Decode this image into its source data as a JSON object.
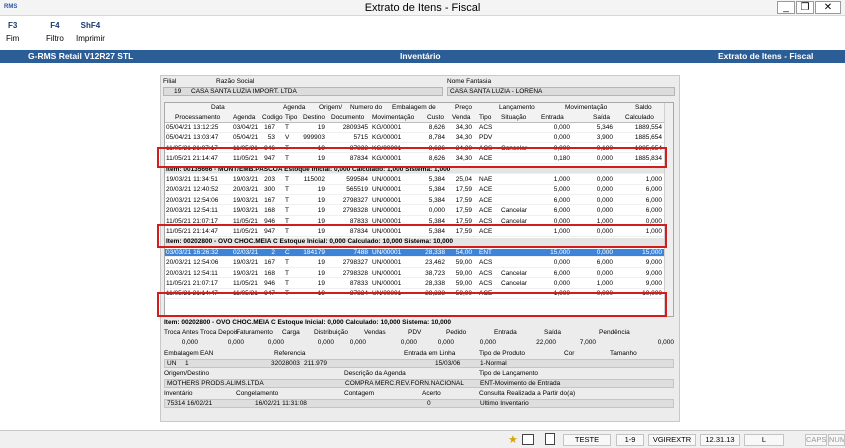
{
  "window": {
    "title": "Extrato de Itens - Fiscal",
    "logo": "RMS"
  },
  "toolbar": [
    {
      "key": "F3",
      "label": "Fim"
    },
    {
      "key": "F4",
      "label": "Filtro"
    },
    {
      "key": "ShF4",
      "label": "Imprimir"
    }
  ],
  "banner": {
    "left": "G-RMS Retail V12R27 STL",
    "center": "Inventário",
    "right": "Extrato de Itens - Fiscal"
  },
  "filial": {
    "label_filial": "Filial",
    "label_razao": "Razão Social",
    "code": "19",
    "razao": "CASA SANTA LUZIA IMPORT. LTDA",
    "label_fantasia": "Nome Fantasia",
    "fantasia": "CASA SANTA LUZIA - LORENA"
  },
  "grid": {
    "group_headers": [
      "Data",
      "Agenda",
      "Origem/",
      "Numero do",
      "Embalagem de",
      "Preço",
      "Lançamento",
      "Movimentação",
      "Saldo"
    ],
    "headers": [
      "Processamento",
      "Agenda",
      "Codigo",
      "Tipo",
      "Destino",
      "Documento",
      "Movimentação",
      "Custo",
      "Venda",
      "Tipo",
      "Situação",
      "Entrada",
      "Saída",
      "Calculado"
    ],
    "rows": [
      {
        "kind": "row",
        "c": [
          "05/04/21 13:12:25",
          "03/04/21",
          "167",
          "T",
          "19",
          "2809345",
          "KG/00001",
          "8,626",
          "34,30",
          "ACS",
          "",
          "0,000",
          "5,346",
          "1889,554"
        ]
      },
      {
        "kind": "row",
        "c": [
          "05/04/21 13:03:47",
          "05/04/21",
          "53",
          "V",
          "999903",
          "5715",
          "KG/00001",
          "8,784",
          "34,30",
          "PDV",
          "",
          "0,000",
          "3,900",
          "1885,654"
        ]
      },
      {
        "kind": "row",
        "c": [
          "11/05/21 21:07:17",
          "11/05/21",
          "946",
          "T",
          "19",
          "87833",
          "KG/00001",
          "8,626",
          "34,30",
          "ACS",
          "Cancelar",
          "0,000",
          "0,180",
          "1885,654"
        ]
      },
      {
        "kind": "row",
        "c": [
          "11/05/21 21:14:47",
          "11/05/21",
          "947",
          "T",
          "19",
          "87834",
          "KG/00001",
          "8,626",
          "34,30",
          "ACE",
          "",
          "0,180",
          "0,000",
          "1885,834"
        ]
      },
      {
        "kind": "group",
        "text": "Item: 00135666 - MONT/EMB.PASCOA  Estoque Inicial: 0,000  Calculado: 1,000  Sistema: 1,000"
      },
      {
        "kind": "row",
        "c": [
          "19/03/21 11:34:51",
          "19/03/21",
          "203",
          "T",
          "115002",
          "599584",
          "UN/00001",
          "5,384",
          "25,04",
          "NAE",
          "",
          "1,000",
          "0,000",
          "1,000"
        ]
      },
      {
        "kind": "row",
        "c": [
          "20/03/21 12:40:52",
          "20/03/21",
          "300",
          "T",
          "19",
          "565519",
          "UN/00001",
          "5,384",
          "17,59",
          "ACE",
          "",
          "5,000",
          "0,000",
          "6,000"
        ]
      },
      {
        "kind": "row",
        "c": [
          "20/03/21 12:54:06",
          "19/03/21",
          "167",
          "T",
          "19",
          "2798327",
          "UN/00001",
          "5,384",
          "17,59",
          "ACE",
          "",
          "6,000",
          "0,000",
          "6,000"
        ]
      },
      {
        "kind": "row",
        "c": [
          "20/03/21 12:54:11",
          "19/03/21",
          "168",
          "T",
          "19",
          "2798328",
          "UN/00001",
          "0,000",
          "17,59",
          "ACE",
          "Cancelar",
          "6,000",
          "0,000",
          "6,000"
        ]
      },
      {
        "kind": "row",
        "c": [
          "11/05/21 21:07:17",
          "11/05/21",
          "946",
          "T",
          "19",
          "87833",
          "UN/00001",
          "5,384",
          "17,59",
          "ACS",
          "Cancelar",
          "0,000",
          "1,000",
          "0,000"
        ]
      },
      {
        "kind": "row",
        "c": [
          "11/05/21 21:14:47",
          "11/05/21",
          "947",
          "T",
          "19",
          "87834",
          "UN/00001",
          "5,384",
          "17,59",
          "ACE",
          "",
          "1,000",
          "0,000",
          "1,000"
        ]
      },
      {
        "kind": "group",
        "text": "Item: 00202800 - OVO CHOC.MEIA C  Estoque Inicial: 0,000  Calculado: 10,000  Sistema: 10,000"
      },
      {
        "kind": "sel",
        "c": [
          "03/03/21 16:26:32",
          "02/03/21",
          "2",
          "C",
          "184179",
          "7488",
          "UN/00001",
          "28,338",
          "54,00",
          "ENT",
          "",
          "15,000",
          "0,000",
          "15,000"
        ]
      },
      {
        "kind": "row",
        "c": [
          "20/03/21 12:54:06",
          "19/03/21",
          "167",
          "T",
          "19",
          "2798327",
          "UN/00001",
          "23,462",
          "59,00",
          "ACS",
          "",
          "0,000",
          "6,000",
          "9,000"
        ]
      },
      {
        "kind": "row",
        "c": [
          "20/03/21 12:54:11",
          "19/03/21",
          "168",
          "T",
          "19",
          "2798328",
          "UN/00001",
          "38,723",
          "59,00",
          "ACS",
          "Cancelar",
          "6,000",
          "0,000",
          "9,000"
        ]
      },
      {
        "kind": "row",
        "c": [
          "11/05/21 21:07:17",
          "11/05/21",
          "946",
          "T",
          "19",
          "87833",
          "UN/00001",
          "28,338",
          "59,00",
          "ACS",
          "Cancelar",
          "0,000",
          "1,000",
          "9,000"
        ]
      },
      {
        "kind": "row",
        "c": [
          "11/05/21 21:14:47",
          "11/05/21",
          "947",
          "T",
          "19",
          "87834",
          "UN/00001",
          "28,338",
          "59,00",
          "ACE",
          "",
          "1,000",
          "0,000",
          "10,000"
        ]
      }
    ]
  },
  "summary": {
    "item_line": "Item: 00202800 - OVO CHOC.MEIA C  Estoque Inicial: 0,000  Calculado: 10,000  Sistema: 10,000",
    "labels": [
      "Troca Antes",
      "Troca Depois",
      "Faturamento",
      "Carga",
      "Distribuição",
      "Vendas",
      "PDV",
      "Pedido",
      "Entrada",
      "Saída",
      "Pendência"
    ],
    "values": [
      "0,000",
      "0,000",
      "0,000",
      "0,000",
      "0,000",
      "0,000",
      "0,000",
      "0,000",
      "22,000",
      "7,000",
      "0,000"
    ]
  },
  "details": {
    "embalagem_label": "Embalagem",
    "ean_label": "EAN",
    "referencia_label": "Referencia",
    "entrada_linha_label": "Entrada em Linha",
    "tipo_produto_label": "Tipo de Produto",
    "cor_label": "Cor",
    "tamanho_label": "Tamanho",
    "embalagem": "UN",
    "embalagem_qtd": "1",
    "ean": "32028003",
    "referencia": "211.979",
    "entrada_linha": "15/03/06",
    "tipo_produto": "1-Normal",
    "origem_label": "Origem/Destino",
    "descricao_label": "Descrição da Agenda",
    "tipo_lanc_label": "Tipo de Lançamento",
    "origem": "MOTHERS PRODS.ALIMS.LTDA",
    "descricao": "COMPRA MERC.REV.FORN.NACIONAL",
    "tipo_lanc": "ENT-Movimento de Entrada",
    "inventario_label": "Inventário",
    "congelamento_label": "Congelamento",
    "contagem_label": "Contagem",
    "acerto_label": "Acerto",
    "consulta_label": "Consulta Realizada a Partir do(a)",
    "inventario": "75314 16/02/21",
    "congelamento": "16/02/21 11:31:08",
    "acerto": "0",
    "consulta": "Ultimo Inventario"
  },
  "statusbar": [
    "TESTE",
    "1-9",
    "VGIREXTR",
    "12.31.13",
    "L",
    "CAPS",
    "NUM"
  ]
}
